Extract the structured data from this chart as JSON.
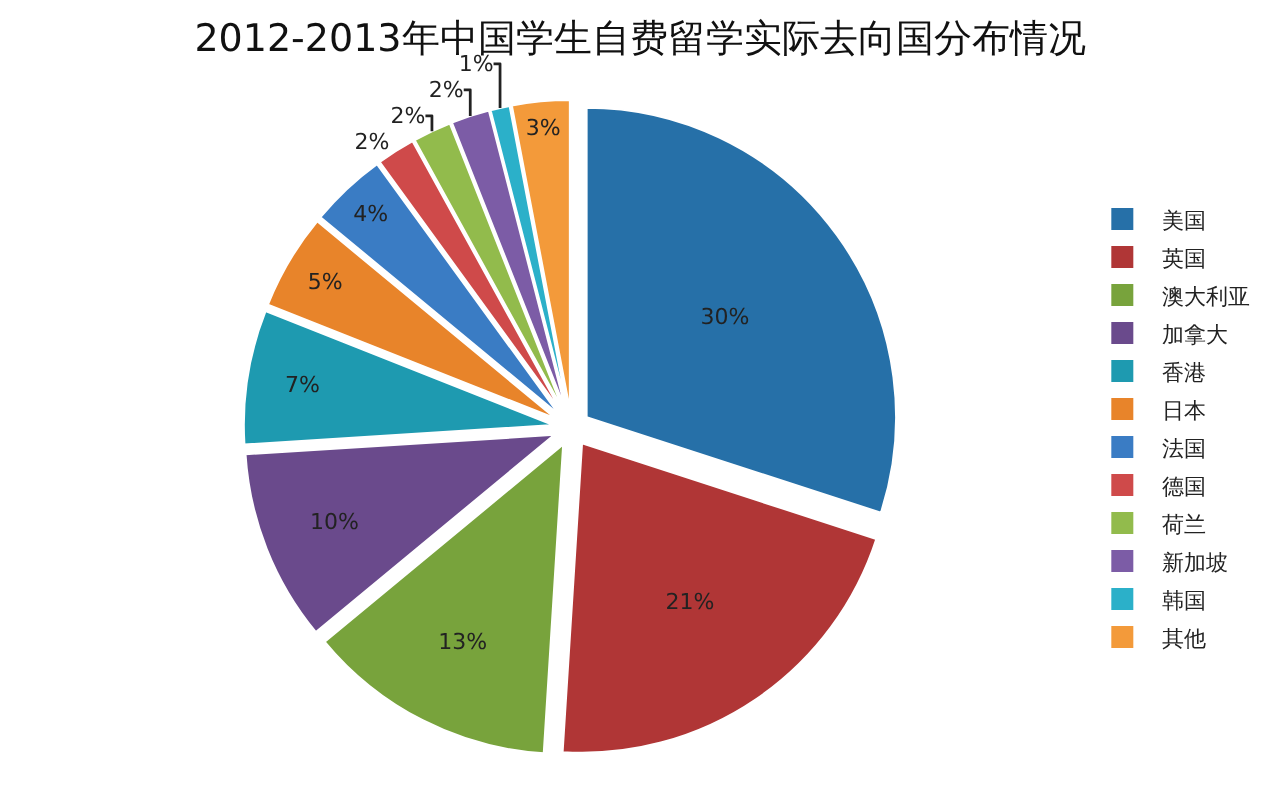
{
  "chart_data": {
    "type": "pie",
    "title": "2012-2013年中国学生自费留学实际去向国分布情况",
    "categories": [
      "美国",
      "英国",
      "澳大利亚",
      "加拿大",
      "香港",
      "日本",
      "法国",
      "德国",
      "荷兰",
      "新加坡",
      "韩国",
      "其他"
    ],
    "values": [
      30,
      21,
      13,
      10,
      7,
      5,
      4,
      2,
      2,
      2,
      1,
      3
    ],
    "value_labels": [
      "30%",
      "21%",
      "13%",
      "10%",
      "7%",
      "5%",
      "4%",
      "2%",
      "2%",
      "2%",
      "1%",
      "3%"
    ],
    "colors": [
      "#2670a8",
      "#b03636",
      "#78a33c",
      "#6a4a8c",
      "#1e9ab0",
      "#e8842a",
      "#3a7cc4",
      "#cf4a4a",
      "#92bb4c",
      "#7c5ca6",
      "#2bb0c9",
      "#f39a3a"
    ],
    "legend": "right"
  }
}
